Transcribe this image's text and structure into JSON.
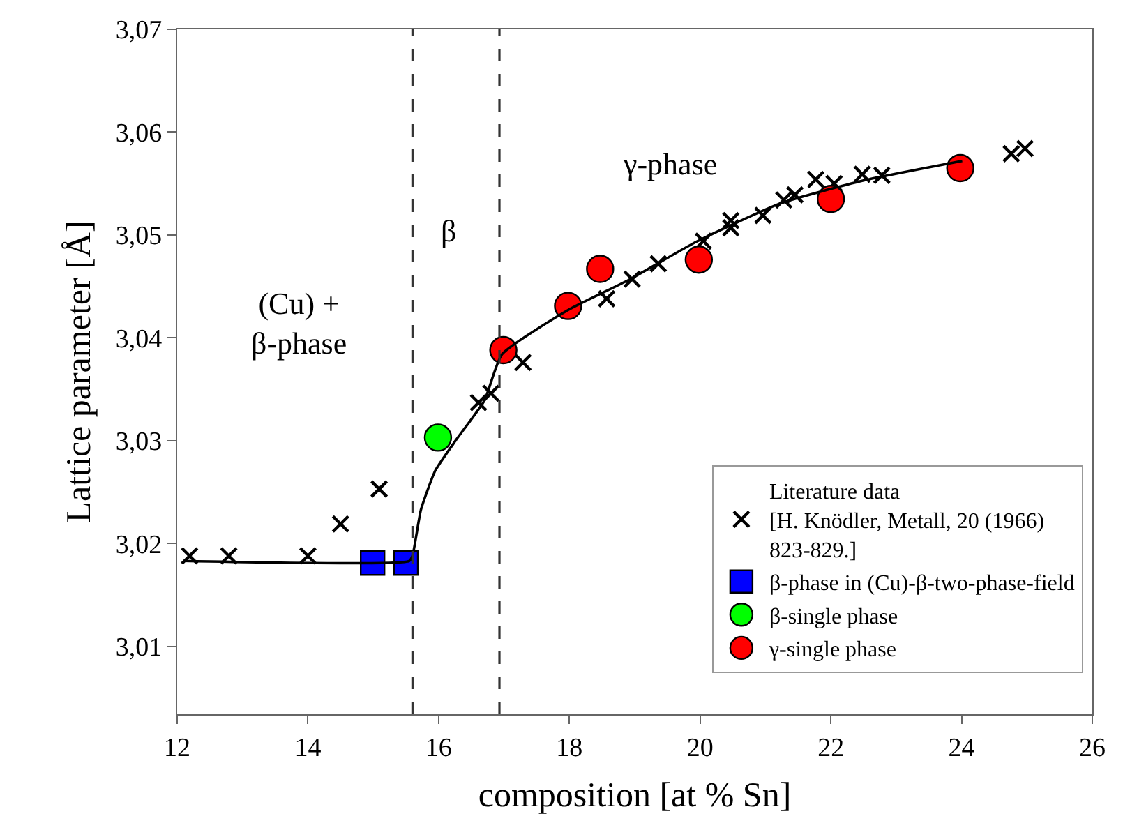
{
  "chart_data": {
    "type": "scatter",
    "xlabel": "composition [at % Sn]",
    "ylabel": "Lattice parameter [Å]",
    "xlim": [
      12,
      26
    ],
    "xticks": [
      12,
      14,
      16,
      18,
      20,
      22,
      24,
      26
    ],
    "ylim": [
      3.0034,
      3.07
    ],
    "yticks": [
      {
        "value": 3.01,
        "label": "3,01"
      },
      {
        "value": 3.02,
        "label": "3,02"
      },
      {
        "value": 3.03,
        "label": "3,03"
      },
      {
        "value": 3.04,
        "label": "3,04"
      },
      {
        "value": 3.05,
        "label": "3,05"
      },
      {
        "value": 3.06,
        "label": "3,06"
      },
      {
        "value": 3.07,
        "label": "3,07"
      }
    ],
    "legend": "bottom right",
    "series": [
      {
        "type": "line",
        "color": "#000000",
        "marker": "none",
        "line_style": "solid",
        "x": [
          12.1,
          15.55,
          15.6,
          15.73,
          15.95,
          16.27,
          16.7,
          16.97,
          17.98,
          18.9,
          19.96,
          21.24,
          22.5,
          24.01
        ],
        "values": [
          3.0183,
          3.0183,
          3.0188,
          3.0233,
          3.0271,
          3.0301,
          3.0339,
          3.0384,
          3.0427,
          3.0456,
          3.0494,
          3.0531,
          3.0553,
          3.0572
        ]
      },
      {
        "name": "Literature data\n[H. Knödler, Metall, 20 (1966)\n823-829.]",
        "color": "#000000",
        "marker": "cross",
        "x": [
          12.19,
          12.79,
          14.0,
          14.5,
          15.09,
          16.61,
          16.8,
          17.29,
          18.57,
          18.96,
          19.36,
          20.05,
          20.47,
          20.47,
          20.96,
          21.28,
          21.45,
          21.77,
          22.05,
          22.48,
          22.78,
          24.76,
          24.97
        ],
        "values": [
          3.0188,
          3.0188,
          3.0188,
          3.0219,
          3.0253,
          3.0337,
          3.0346,
          3.0376,
          3.0438,
          3.0457,
          3.0472,
          3.0494,
          3.0514,
          3.0507,
          3.0519,
          3.0534,
          3.0539,
          3.0554,
          3.055,
          3.0559,
          3.0558,
          3.0579,
          3.0584
        ]
      },
      {
        "name": "β-phase in (Cu)-β-two-phase-field",
        "color": "#0000ff",
        "marker": "square",
        "x": [
          14.99,
          15.5
        ],
        "values": [
          3.0181,
          3.0181
        ]
      },
      {
        "name": "β-single phase",
        "color": "#00ff00",
        "marker": "circle",
        "x": [
          15.99
        ],
        "values": [
          3.0303
        ]
      },
      {
        "name": "γ-single phase",
        "color": "#ff0000",
        "marker": "circle",
        "x": [
          16.99,
          17.98,
          18.47,
          19.98,
          22.0,
          23.98
        ],
        "values": [
          3.0388,
          3.0431,
          3.0467,
          3.0476,
          3.0535,
          3.0565
        ]
      }
    ],
    "ref_lines": [
      {
        "axis": "x",
        "value": 15.6,
        "color": "#333333",
        "line_style": "dashed"
      },
      {
        "axis": "x",
        "value": 16.93,
        "color": "#333333",
        "line_style": "dashed"
      }
    ],
    "annotations": [
      "(Cu) +\nβ-phase",
      "β",
      "γ-phase"
    ]
  }
}
